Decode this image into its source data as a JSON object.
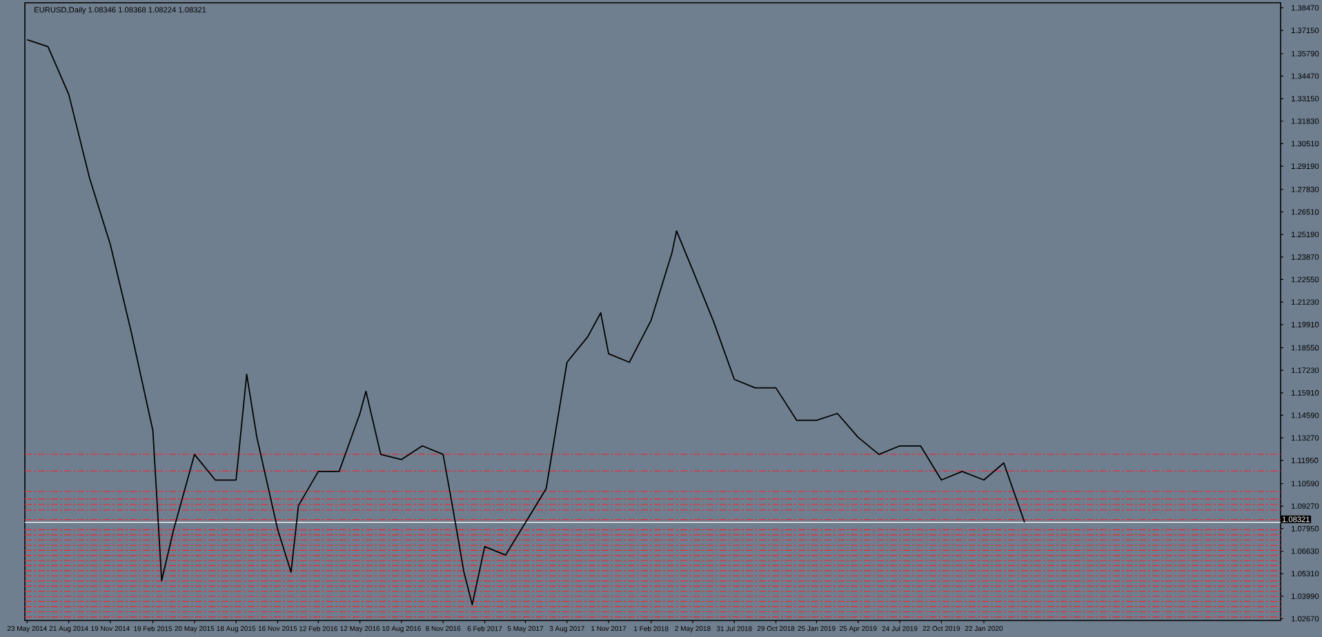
{
  "chart_data": {
    "type": "line",
    "title": "EURUSD,Daily 1.08346 1.08368 1.08224 1.08321",
    "color": "#000000",
    "x": [
      "2014-05-23",
      "2014-07-07",
      "2014-08-21",
      "2014-10-05",
      "2014-11-19",
      "2015-01-03",
      "2015-02-19",
      "2015-03-10",
      "2015-04-05",
      "2015-05-20",
      "2015-07-04",
      "2015-08-18",
      "2015-09-10",
      "2015-10-02",
      "2015-11-16",
      "2015-12-15",
      "2015-12-31",
      "2016-02-12",
      "2016-03-28",
      "2016-05-12",
      "2016-05-25",
      "2016-06-26",
      "2016-08-10",
      "2016-09-24",
      "2016-11-08",
      "2016-11-28",
      "2016-12-23",
      "2017-01-10",
      "2017-02-06",
      "2017-03-23",
      "2017-05-05",
      "2017-06-19",
      "2017-08-03",
      "2017-09-17",
      "2017-10-15",
      "2017-11-01",
      "2017-12-16",
      "2018-02-01",
      "2018-03-18",
      "2018-03-28",
      "2018-05-02",
      "2018-06-16",
      "2018-07-31",
      "2018-09-14",
      "2018-10-29",
      "2018-12-13",
      "2019-01-25",
      "2019-03-11",
      "2019-04-25",
      "2019-06-09",
      "2019-07-24",
      "2019-09-07",
      "2019-10-22",
      "2019-12-06",
      "2020-01-22",
      "2020-03-05",
      "2020-04-19"
    ],
    "values": [
      1.366,
      1.362,
      1.334,
      1.285,
      1.246,
      1.195,
      1.137,
      1.049,
      1.079,
      1.123,
      1.108,
      1.108,
      1.17,
      1.133,
      1.079,
      1.054,
      1.093,
      1.113,
      1.113,
      1.147,
      1.16,
      1.123,
      1.12,
      1.128,
      1.123,
      1.093,
      1.054,
      1.035,
      1.069,
      1.064,
      1.083,
      1.103,
      1.177,
      1.192,
      1.206,
      1.182,
      1.177,
      1.2016,
      1.241,
      1.254,
      1.231,
      1.201,
      1.167,
      1.162,
      1.162,
      1.143,
      1.143,
      1.147,
      1.133,
      1.123,
      1.128,
      1.128,
      1.108,
      1.113,
      1.108,
      1.118,
      1.0832
    ],
    "xlim": [
      "2014-05-18",
      "2021-10-25"
    ],
    "xticks": [
      {
        "value": "2014-05-23",
        "label": "23 May 2014"
      },
      {
        "value": "2014-08-21",
        "label": "21 Aug 2014"
      },
      {
        "value": "2014-11-19",
        "label": "19 Nov 2014"
      },
      {
        "value": "2015-02-19",
        "label": "19 Feb 2015"
      },
      {
        "value": "2015-05-20",
        "label": "20 May 2015"
      },
      {
        "value": "2015-08-18",
        "label": "18 Aug 2015"
      },
      {
        "value": "2015-11-16",
        "label": "16 Nov 2015"
      },
      {
        "value": "2016-02-12",
        "label": "12 Feb 2016"
      },
      {
        "value": "2016-05-12",
        "label": "12 May 2016"
      },
      {
        "value": "2016-08-10",
        "label": "10 Aug 2016"
      },
      {
        "value": "2016-11-08",
        "label": "8 Nov 2016"
      },
      {
        "value": "2017-02-06",
        "label": "6 Feb 2017"
      },
      {
        "value": "2017-05-05",
        "label": "5 May 2017"
      },
      {
        "value": "2017-08-03",
        "label": "3 Aug 2017"
      },
      {
        "value": "2017-11-01",
        "label": "1 Nov 2017"
      },
      {
        "value": "2018-02-01",
        "label": "1 Feb 2018"
      },
      {
        "value": "2018-05-02",
        "label": "2 May 2018"
      },
      {
        "value": "2018-07-31",
        "label": "31 Jul 2018"
      },
      {
        "value": "2018-10-29",
        "label": "29 Oct 2018"
      },
      {
        "value": "2019-01-25",
        "label": "25 Jan 2019"
      },
      {
        "value": "2019-04-25",
        "label": "25 Apr 2019"
      },
      {
        "value": "2019-07-24",
        "label": "24 Jul 2019"
      },
      {
        "value": "2019-10-22",
        "label": "22 Oct 2019"
      },
      {
        "value": "2020-01-22",
        "label": "22 Jan 2020"
      }
    ],
    "ylim": [
      1.0257,
      1.3877
    ],
    "yticks": [
      {
        "value": 1.0267,
        "label": "1.02670"
      },
      {
        "value": 1.0399,
        "label": "1.03990"
      },
      {
        "value": 1.0531,
        "label": "1.05310"
      },
      {
        "value": 1.0663,
        "label": "1.06630"
      },
      {
        "value": 1.0795,
        "label": "1.07950"
      },
      {
        "value": 1.0927,
        "label": "1.09270"
      },
      {
        "value": 1.1059,
        "label": "1.10590"
      },
      {
        "value": 1.1195,
        "label": "1.11950"
      },
      {
        "value": 1.1327,
        "label": "1.13270"
      },
      {
        "value": 1.1459,
        "label": "1.14590"
      },
      {
        "value": 1.1591,
        "label": "1.15910"
      },
      {
        "value": 1.1723,
        "label": "1.17230"
      },
      {
        "value": 1.1855,
        "label": "1.18550"
      },
      {
        "value": 1.1991,
        "label": "1.19910"
      },
      {
        "value": 1.2123,
        "label": "1.21230"
      },
      {
        "value": 1.2255,
        "label": "1.22550"
      },
      {
        "value": 1.2387,
        "label": "1.23870"
      },
      {
        "value": 1.2519,
        "label": "1.25190"
      },
      {
        "value": 1.2651,
        "label": "1.26510"
      },
      {
        "value": 1.2783,
        "label": "1.27830"
      },
      {
        "value": 1.2919,
        "label": "1.29190"
      },
      {
        "value": 1.3051,
        "label": "1.30510"
      },
      {
        "value": 1.3183,
        "label": "1.31830"
      },
      {
        "value": 1.3315,
        "label": "1.33150"
      },
      {
        "value": 1.3447,
        "label": "1.34470"
      },
      {
        "value": 1.3579,
        "label": "1.35790"
      },
      {
        "value": 1.3715,
        "label": "1.37150"
      },
      {
        "value": 1.3847,
        "label": "1.38470"
      }
    ],
    "ref_lines": [
      {
        "axis": "y",
        "value": 1.08321,
        "label": "1.08321",
        "color": "#ffffff",
        "line_style": "solid"
      },
      {
        "axis": "y",
        "value": 1.1231,
        "color": "#e0303c",
        "line_style": "dashed"
      },
      {
        "axis": "y",
        "value": 1.1133,
        "color": "#e0303c",
        "line_style": "dashed"
      },
      {
        "axis": "y",
        "value": 1.1013,
        "color": "#e0303c",
        "line_style": "dashed"
      },
      {
        "axis": "y",
        "value": 1.0969,
        "color": "#e0303c",
        "line_style": "dashed"
      },
      {
        "axis": "y",
        "value": 1.0936,
        "color": "#e0303c",
        "line_style": "dashed"
      },
      {
        "axis": "y",
        "value": 1.0904,
        "color": "#e0303c",
        "line_style": "dashed"
      },
      {
        "axis": "y",
        "value": 1.0848,
        "color": "#e0303c",
        "line_style": "dashed"
      },
      {
        "axis": "y",
        "value": 1.0788,
        "color": "#e0303c",
        "line_style": "dashed"
      },
      {
        "axis": "y",
        "value": 1.0758,
        "color": "#e0303c",
        "line_style": "dashed"
      },
      {
        "axis": "y",
        "value": 1.0728,
        "color": "#e0303c",
        "line_style": "dashed"
      },
      {
        "axis": "y",
        "value": 1.0698,
        "color": "#e0303c",
        "line_style": "dashed"
      },
      {
        "axis": "y",
        "value": 1.0668,
        "color": "#e0303c",
        "line_style": "dashed"
      },
      {
        "axis": "y",
        "value": 1.0638,
        "color": "#e0303c",
        "line_style": "dashed"
      },
      {
        "axis": "y",
        "value": 1.0608,
        "color": "#e0303c",
        "line_style": "dashed"
      },
      {
        "axis": "y",
        "value": 1.0578,
        "color": "#e0303c",
        "line_style": "dashed"
      },
      {
        "axis": "y",
        "value": 1.0548,
        "color": "#e0303c",
        "line_style": "dashed"
      },
      {
        "axis": "y",
        "value": 1.0518,
        "color": "#e0303c",
        "line_style": "dashed"
      },
      {
        "axis": "y",
        "value": 1.0488,
        "color": "#e0303c",
        "line_style": "dashed"
      },
      {
        "axis": "y",
        "value": 1.0458,
        "color": "#e0303c",
        "line_style": "dashed"
      },
      {
        "axis": "y",
        "value": 1.0428,
        "color": "#e0303c",
        "line_style": "dashed"
      },
      {
        "axis": "y",
        "value": 1.0398,
        "color": "#e0303c",
        "line_style": "dashed"
      },
      {
        "axis": "y",
        "value": 1.0368,
        "color": "#e0303c",
        "line_style": "dashed"
      },
      {
        "axis": "y",
        "value": 1.0338,
        "color": "#e0303c",
        "line_style": "dashed"
      },
      {
        "axis": "y",
        "value": 1.0308,
        "color": "#e0303c",
        "line_style": "dashed"
      },
      {
        "axis": "y",
        "value": 1.0278,
        "color": "#e0303c",
        "line_style": "dashed"
      }
    ]
  }
}
